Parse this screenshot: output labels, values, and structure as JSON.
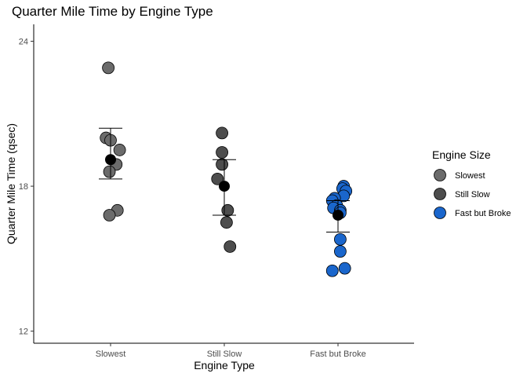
{
  "chart_data": {
    "type": "scatter",
    "title": "Quarter Mile Time by Engine Type",
    "xlabel": "Engine Type",
    "ylabel": "Quarter Mile Time (qsec)",
    "categories": [
      "Slowest",
      "Still Slow",
      "Fast but Broke"
    ],
    "ylim": [
      11.5,
      24.7
    ],
    "yticks": [
      12,
      18,
      24
    ],
    "grid": false,
    "legend": {
      "title": "Engine Size",
      "position": "right",
      "entries": [
        {
          "label": "Slowest",
          "color": "#6b6b6b"
        },
        {
          "label": "Still Slow",
          "color": "#4d4d4d"
        },
        {
          "label": "Fast but Broke",
          "color": "#1a66cc"
        }
      ]
    },
    "series": [
      {
        "category": "Slowest",
        "color": "#6b6b6b",
        "points": [
          {
            "x": -0.02,
            "y": 22.9
          },
          {
            "x": -0.04,
            "y": 20.0
          },
          {
            "x": 0.0,
            "y": 19.9
          },
          {
            "x": 0.08,
            "y": 19.5
          },
          {
            "x": 0.05,
            "y": 18.9
          },
          {
            "x": -0.01,
            "y": 18.6
          },
          {
            "x": 0.06,
            "y": 17.0
          },
          {
            "x": -0.01,
            "y": 16.8
          }
        ],
        "mean": 19.1,
        "error_low": 18.3,
        "error_high": 20.4
      },
      {
        "category": "Still Slow",
        "color": "#4d4d4d",
        "points": [
          {
            "x": -0.02,
            "y": 20.2
          },
          {
            "x": -0.02,
            "y": 19.4
          },
          {
            "x": -0.02,
            "y": 18.9
          },
          {
            "x": -0.06,
            "y": 18.3
          },
          {
            "x": 0.03,
            "y": 17.0
          },
          {
            "x": 0.02,
            "y": 16.5
          },
          {
            "x": 0.05,
            "y": 15.5
          }
        ],
        "mean": 18.0,
        "error_low": 16.8,
        "error_high": 19.1
      },
      {
        "category": "Fast but Broke",
        "color": "#1a66cc",
        "points": [
          {
            "x": 0.05,
            "y": 18.0
          },
          {
            "x": 0.04,
            "y": 17.9
          },
          {
            "x": 0.07,
            "y": 17.8
          },
          {
            "x": 0.05,
            "y": 17.6
          },
          {
            "x": -0.03,
            "y": 17.5
          },
          {
            "x": -0.05,
            "y": 17.4
          },
          {
            "x": -0.01,
            "y": 17.2
          },
          {
            "x": -0.04,
            "y": 17.1
          },
          {
            "x": 0.02,
            "y": 17.0
          },
          {
            "x": 0.02,
            "y": 16.9
          },
          {
            "x": 0.02,
            "y": 15.8
          },
          {
            "x": 0.02,
            "y": 15.3
          },
          {
            "x": 0.06,
            "y": 14.6
          },
          {
            "x": -0.05,
            "y": 14.5
          }
        ],
        "mean": 16.8,
        "error_low": 16.1,
        "error_high": 17.4
      }
    ]
  }
}
